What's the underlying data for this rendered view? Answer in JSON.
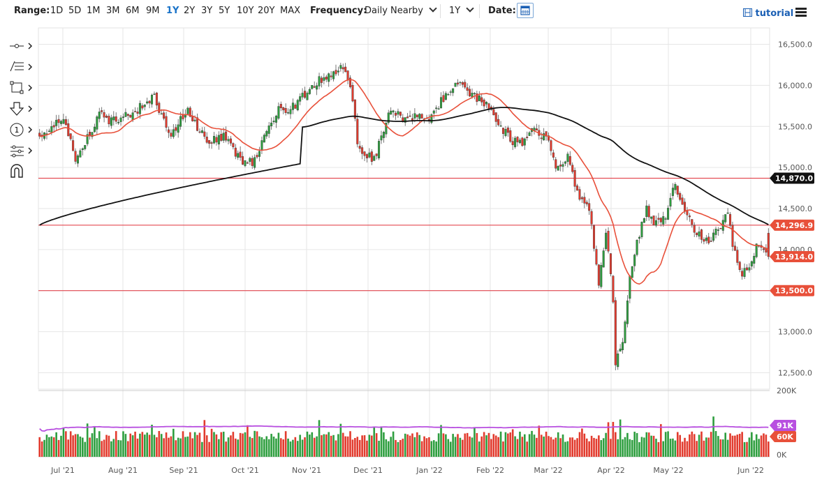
{
  "toolbar": {
    "range_label": "Range:",
    "ranges": [
      "1D",
      "5D",
      "1M",
      "3M",
      "6M",
      "9M",
      "1Y",
      "2Y",
      "3Y",
      "5Y",
      "10Y",
      "20Y",
      "MAX"
    ],
    "active_range": "1Y",
    "frequency_label": "Frequency:",
    "frequency_value": "Daily Nearby",
    "period_value": "1Y",
    "date_label": "Date:",
    "tutorial_label": "tutorial",
    "accent_color": "#1a73c8"
  },
  "side_tools": [
    "crosshair-icon",
    "fibonacci-icon",
    "rectangle-icon",
    "arrow-down-icon",
    "counter-icon",
    "settings-sliders-icon",
    "magnet-icon"
  ],
  "chart_data": {
    "type": "candlestick",
    "x_ticks": [
      "Jul '21",
      "Aug '21",
      "Sep '21",
      "Oct '21",
      "Nov '21",
      "Dec '21",
      "Jan '22",
      "Feb '22",
      "Mar '22",
      "Apr '22",
      "May '22",
      "Jun '22"
    ],
    "y_ticks": [
      12500,
      13000,
      13500,
      14000,
      14500,
      15000,
      15500,
      16000,
      16500
    ],
    "y_tick_labels": [
      "12,500.0",
      "13,000.0",
      "13,500.0",
      "14,000.0",
      "14,500.0",
      "15,000.0",
      "15,500.0",
      "16,000.0",
      "16,500.0"
    ],
    "ylim": [
      12300,
      16700
    ],
    "volume_ticks": [
      "200K",
      "0K"
    ],
    "volume_ylim": [
      0,
      200000
    ],
    "horizontal_lines": [
      {
        "value": 14870,
        "label": "14,870.0",
        "color": "#e0303a"
      },
      {
        "value": 14296.9,
        "label": "14,296.9",
        "color": "#e0303a"
      },
      {
        "value": 13500,
        "label": "13,500.0",
        "color": "#e0303a"
      }
    ],
    "price_badges": [
      {
        "value": 14870,
        "label": "14,870.0",
        "color": "#111111"
      },
      {
        "value": 14296.9,
        "label": "14,296.9",
        "color": "#e8503a"
      },
      {
        "value": 13914,
        "label": "13,914.0",
        "color": "#e8503a"
      },
      {
        "value": 13500,
        "label": "13,500.0",
        "color": "#e8503a"
      }
    ],
    "volume_badges": [
      {
        "value": 91000,
        "label": "91K",
        "color": "#b84fe0"
      },
      {
        "value": 60000,
        "label": "60K",
        "color": "#e8503a"
      }
    ],
    "colors": {
      "up": "#2e9e3f",
      "down": "#e23b2e",
      "ma_short": "#e8503a",
      "ma_long": "#111111",
      "volume_ma": "#b84fe0",
      "grid": "#e6e6e6"
    },
    "anchors": [
      [
        0,
        15380
      ],
      [
        10,
        15600
      ],
      [
        15,
        15100
      ],
      [
        25,
        15640
      ],
      [
        30,
        15560
      ],
      [
        40,
        15690
      ],
      [
        48,
        15850
      ],
      [
        55,
        15400
      ],
      [
        62,
        15700
      ],
      [
        70,
        15300
      ],
      [
        77,
        15380
      ],
      [
        85,
        15040
      ],
      [
        90,
        15080
      ],
      [
        95,
        15480
      ],
      [
        100,
        15700
      ],
      [
        105,
        15700
      ],
      [
        110,
        15880
      ],
      [
        118,
        16080
      ],
      [
        127,
        16250
      ],
      [
        131,
        15850
      ],
      [
        133,
        15250
      ],
      [
        140,
        15100
      ],
      [
        147,
        15700
      ],
      [
        152,
        15600
      ],
      [
        157,
        15620
      ],
      [
        162,
        15580
      ],
      [
        168,
        15800
      ],
      [
        175,
        16050
      ],
      [
        180,
        15900
      ],
      [
        186,
        15800
      ],
      [
        192,
        15540
      ],
      [
        197,
        15340
      ],
      [
        201,
        15280
      ],
      [
        206,
        15450
      ],
      [
        212,
        15380
      ],
      [
        216,
        15000
      ],
      [
        221,
        15150
      ],
      [
        226,
        14600
      ],
      [
        230,
        14500
      ],
      [
        234,
        13600
      ],
      [
        237,
        14200
      ],
      [
        240,
        13400
      ],
      [
        241,
        12600
      ],
      [
        244,
        12850
      ],
      [
        247,
        13700
      ],
      [
        250,
        14100
      ],
      [
        254,
        14500
      ],
      [
        258,
        14300
      ],
      [
        262,
        14400
      ],
      [
        266,
        14800
      ],
      [
        270,
        14500
      ],
      [
        275,
        14200
      ],
      [
        280,
        14080
      ],
      [
        285,
        14300
      ],
      [
        288,
        14450
      ],
      [
        290,
        14050
      ],
      [
        294,
        13720
      ],
      [
        297,
        13830
      ],
      [
        301,
        14080
      ],
      [
        303,
        14000
      ],
      [
        305,
        13914
      ]
    ]
  }
}
